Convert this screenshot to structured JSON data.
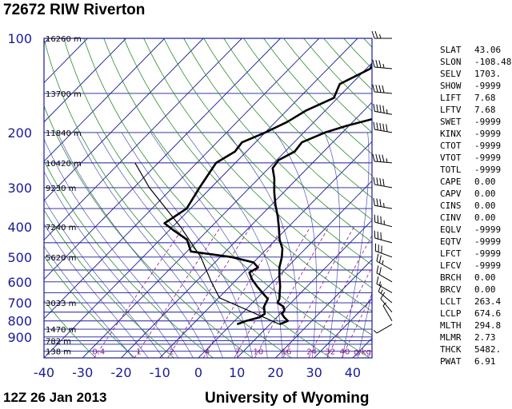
{
  "header": {
    "title": "72672 RIW Riverton"
  },
  "footer": {
    "time": "12Z 26 Jan 2013",
    "source": "University of Wyoming"
  },
  "indices": [
    {
      "name": "SLAT",
      "value": "43.06"
    },
    {
      "name": "SLON",
      "value": "-108.48"
    },
    {
      "name": "SELV",
      "value": "1703."
    },
    {
      "name": "SHOW",
      "value": "-9999"
    },
    {
      "name": "LIFT",
      "value": "7.68"
    },
    {
      "name": "LFTV",
      "value": "7.68"
    },
    {
      "name": "SWET",
      "value": "-9999"
    },
    {
      "name": "KINX",
      "value": "-9999"
    },
    {
      "name": "CTOT",
      "value": "-9999"
    },
    {
      "name": "VTOT",
      "value": "-9999"
    },
    {
      "name": "TOTL",
      "value": "-9999"
    },
    {
      "name": "CAPE",
      "value": "0.00"
    },
    {
      "name": "CAPV",
      "value": "0.00"
    },
    {
      "name": "CINS",
      "value": "0.00"
    },
    {
      "name": "CINV",
      "value": "0.00"
    },
    {
      "name": "EQLV",
      "value": "-9999"
    },
    {
      "name": "EQTV",
      "value": "-9999"
    },
    {
      "name": "LFCT",
      "value": "-9999"
    },
    {
      "name": "LFCV",
      "value": "-9999"
    },
    {
      "name": "BRCH",
      "value": "0.00"
    },
    {
      "name": "BRCV",
      "value": "0.00"
    },
    {
      "name": "LCLT",
      "value": "263.4"
    },
    {
      "name": "LCLP",
      "value": "674.6"
    },
    {
      "name": "MLTH",
      "value": "294.8"
    },
    {
      "name": "MLMR",
      "value": "2.73"
    },
    {
      "name": "THCK",
      "value": "5482."
    },
    {
      "name": "PWAT",
      "value": "6.91"
    }
  ],
  "chart_data": {
    "type": "skew-t",
    "title": "72672 RIW Riverton",
    "xlim": [
      -40,
      45
    ],
    "ylim": [
      1050,
      100
    ],
    "y_scale": "log",
    "x_ticks": [
      "-40",
      "-30",
      "-20",
      "-10",
      "0",
      "10",
      "20",
      "30",
      "40"
    ],
    "x_tick_values": [
      -40,
      -30,
      -20,
      -10,
      0,
      10,
      20,
      30,
      40
    ],
    "y_ticks": [
      "100",
      "200",
      "300",
      "400",
      "500",
      "600",
      "700",
      "800",
      "900"
    ],
    "y_tick_values": [
      100,
      200,
      300,
      400,
      500,
      600,
      700,
      800,
      900
    ],
    "height_labels": [
      {
        "p": 100,
        "text": "16260 m"
      },
      {
        "p": 150,
        "text": "13700 m"
      },
      {
        "p": 200,
        "text": "11840 m"
      },
      {
        "p": 250,
        "text": "10420 m"
      },
      {
        "p": 300,
        "text": "9230 m"
      },
      {
        "p": 400,
        "text": "7240 m"
      },
      {
        "p": 500,
        "text": "5620 m"
      },
      {
        "p": 700,
        "text": "3033 m"
      },
      {
        "p": 850,
        "text": "1470 m"
      },
      {
        "p": 925,
        "text": "782 m"
      },
      {
        "p": 1000,
        "text": "138 m"
      }
    ],
    "mixing_ratio_labels": [
      "0.4",
      "1",
      "2",
      "4",
      "7",
      "10",
      "16",
      "24",
      "32",
      "40",
      "g/kg"
    ],
    "mixing_ratio_values": [
      0.4,
      1,
      2,
      4,
      7,
      10,
      16,
      24,
      32,
      40
    ],
    "temperature": [
      {
        "p": 820,
        "t": 12.5
      },
      {
        "p": 800,
        "t": 13.8
      },
      {
        "p": 780,
        "t": 12.0
      },
      {
        "p": 760,
        "t": 10.5
      },
      {
        "p": 740,
        "t": 10.2
      },
      {
        "p": 720,
        "t": 9.0
      },
      {
        "p": 700,
        "t": 6.5
      },
      {
        "p": 680,
        "t": 6.0
      },
      {
        "p": 650,
        "t": 4.5
      },
      {
        "p": 620,
        "t": 3.0
      },
      {
        "p": 580,
        "t": 0.5
      },
      {
        "p": 540,
        "t": -2.0
      },
      {
        "p": 500,
        "t": -4.0
      },
      {
        "p": 470,
        "t": -6.0
      },
      {
        "p": 440,
        "t": -9.0
      },
      {
        "p": 400,
        "t": -12.5
      },
      {
        "p": 370,
        "t": -15.5
      },
      {
        "p": 340,
        "t": -19.0
      },
      {
        "p": 310,
        "t": -22.5
      },
      {
        "p": 280,
        "t": -26.0
      },
      {
        "p": 260,
        "t": -29.0
      },
      {
        "p": 245,
        "t": -29.5
      },
      {
        "p": 230,
        "t": -27.5
      },
      {
        "p": 215,
        "t": -28.0
      },
      {
        "p": 200,
        "t": -24.5
      },
      {
        "p": 190,
        "t": -20.5
      },
      {
        "p": 180,
        "t": -15.0
      },
      {
        "p": 170,
        "t": -12.0
      },
      {
        "p": 160,
        "t": -12.5
      },
      {
        "p": 150,
        "t": -10.0
      },
      {
        "p": 140,
        "t": -9.0
      },
      {
        "p": 130,
        "t": -8.0
      },
      {
        "p": 120,
        "t": -6.5
      },
      {
        "p": 110,
        "t": -4.5
      },
      {
        "p": 100,
        "t": -2.5
      }
    ],
    "dewpoint": [
      {
        "p": 820,
        "t": 1.5
      },
      {
        "p": 800,
        "t": 3.0
      },
      {
        "p": 780,
        "t": 5.5
      },
      {
        "p": 760,
        "t": 6.0
      },
      {
        "p": 720,
        "t": 4.0
      },
      {
        "p": 700,
        "t": 3.5
      },
      {
        "p": 680,
        "t": 3.0
      },
      {
        "p": 660,
        "t": 1.0
      },
      {
        "p": 620,
        "t": -3.0
      },
      {
        "p": 590,
        "t": -6.0
      },
      {
        "p": 560,
        "t": -8.5
      },
      {
        "p": 540,
        "t": -7.5
      },
      {
        "p": 520,
        "t": -10.0
      },
      {
        "p": 500,
        "t": -17.0
      },
      {
        "p": 480,
        "t": -29.0
      },
      {
        "p": 440,
        "t": -33.0
      },
      {
        "p": 410,
        "t": -39.0
      },
      {
        "p": 390,
        "t": -43.0
      },
      {
        "p": 350,
        "t": -41.0
      },
      {
        "p": 300,
        "t": -43.0
      },
      {
        "p": 250,
        "t": -45.0
      },
      {
        "p": 230,
        "t": -43.0
      },
      {
        "p": 215,
        "t": -43.5
      },
      {
        "p": 200,
        "t": -40.0
      },
      {
        "p": 185,
        "t": -37.0
      },
      {
        "p": 170,
        "t": -35.0
      },
      {
        "p": 155,
        "t": -31.0
      },
      {
        "p": 140,
        "t": -33.0
      },
      {
        "p": 125,
        "t": -29.0
      },
      {
        "p": 112,
        "t": -31.0
      },
      {
        "p": 100,
        "t": -30.5
      }
    ],
    "parcel": [
      {
        "p": 820,
        "t": 12.5
      },
      {
        "p": 675,
        "t": -9.8
      },
      {
        "p": 600,
        "t": -16.0
      },
      {
        "p": 500,
        "t": -25.0
      },
      {
        "p": 400,
        "t": -38.0
      },
      {
        "p": 300,
        "t": -56.0
      },
      {
        "p": 250,
        "t": -66.0
      }
    ],
    "wind_barbs": [
      {
        "p": 100,
        "dir": 270,
        "spd": 25
      },
      {
        "p": 125,
        "dir": 275,
        "spd": 35
      },
      {
        "p": 150,
        "dir": 275,
        "spd": 40
      },
      {
        "p": 175,
        "dir": 280,
        "spd": 45
      },
      {
        "p": 200,
        "dir": 280,
        "spd": 50
      },
      {
        "p": 250,
        "dir": 275,
        "spd": 45
      },
      {
        "p": 300,
        "dir": 280,
        "spd": 40
      },
      {
        "p": 350,
        "dir": 280,
        "spd": 35
      },
      {
        "p": 400,
        "dir": 285,
        "spd": 35
      },
      {
        "p": 450,
        "dir": 285,
        "spd": 30
      },
      {
        "p": 500,
        "dir": 290,
        "spd": 30
      },
      {
        "p": 550,
        "dir": 300,
        "spd": 25
      },
      {
        "p": 600,
        "dir": 300,
        "spd": 20
      },
      {
        "p": 650,
        "dir": 300,
        "spd": 15
      },
      {
        "p": 700,
        "dir": 310,
        "spd": 15
      },
      {
        "p": 750,
        "dir": 320,
        "spd": 10
      },
      {
        "p": 800,
        "dir": 330,
        "spd": 5
      },
      {
        "p": 820,
        "dir": 240,
        "spd": 5
      }
    ]
  }
}
